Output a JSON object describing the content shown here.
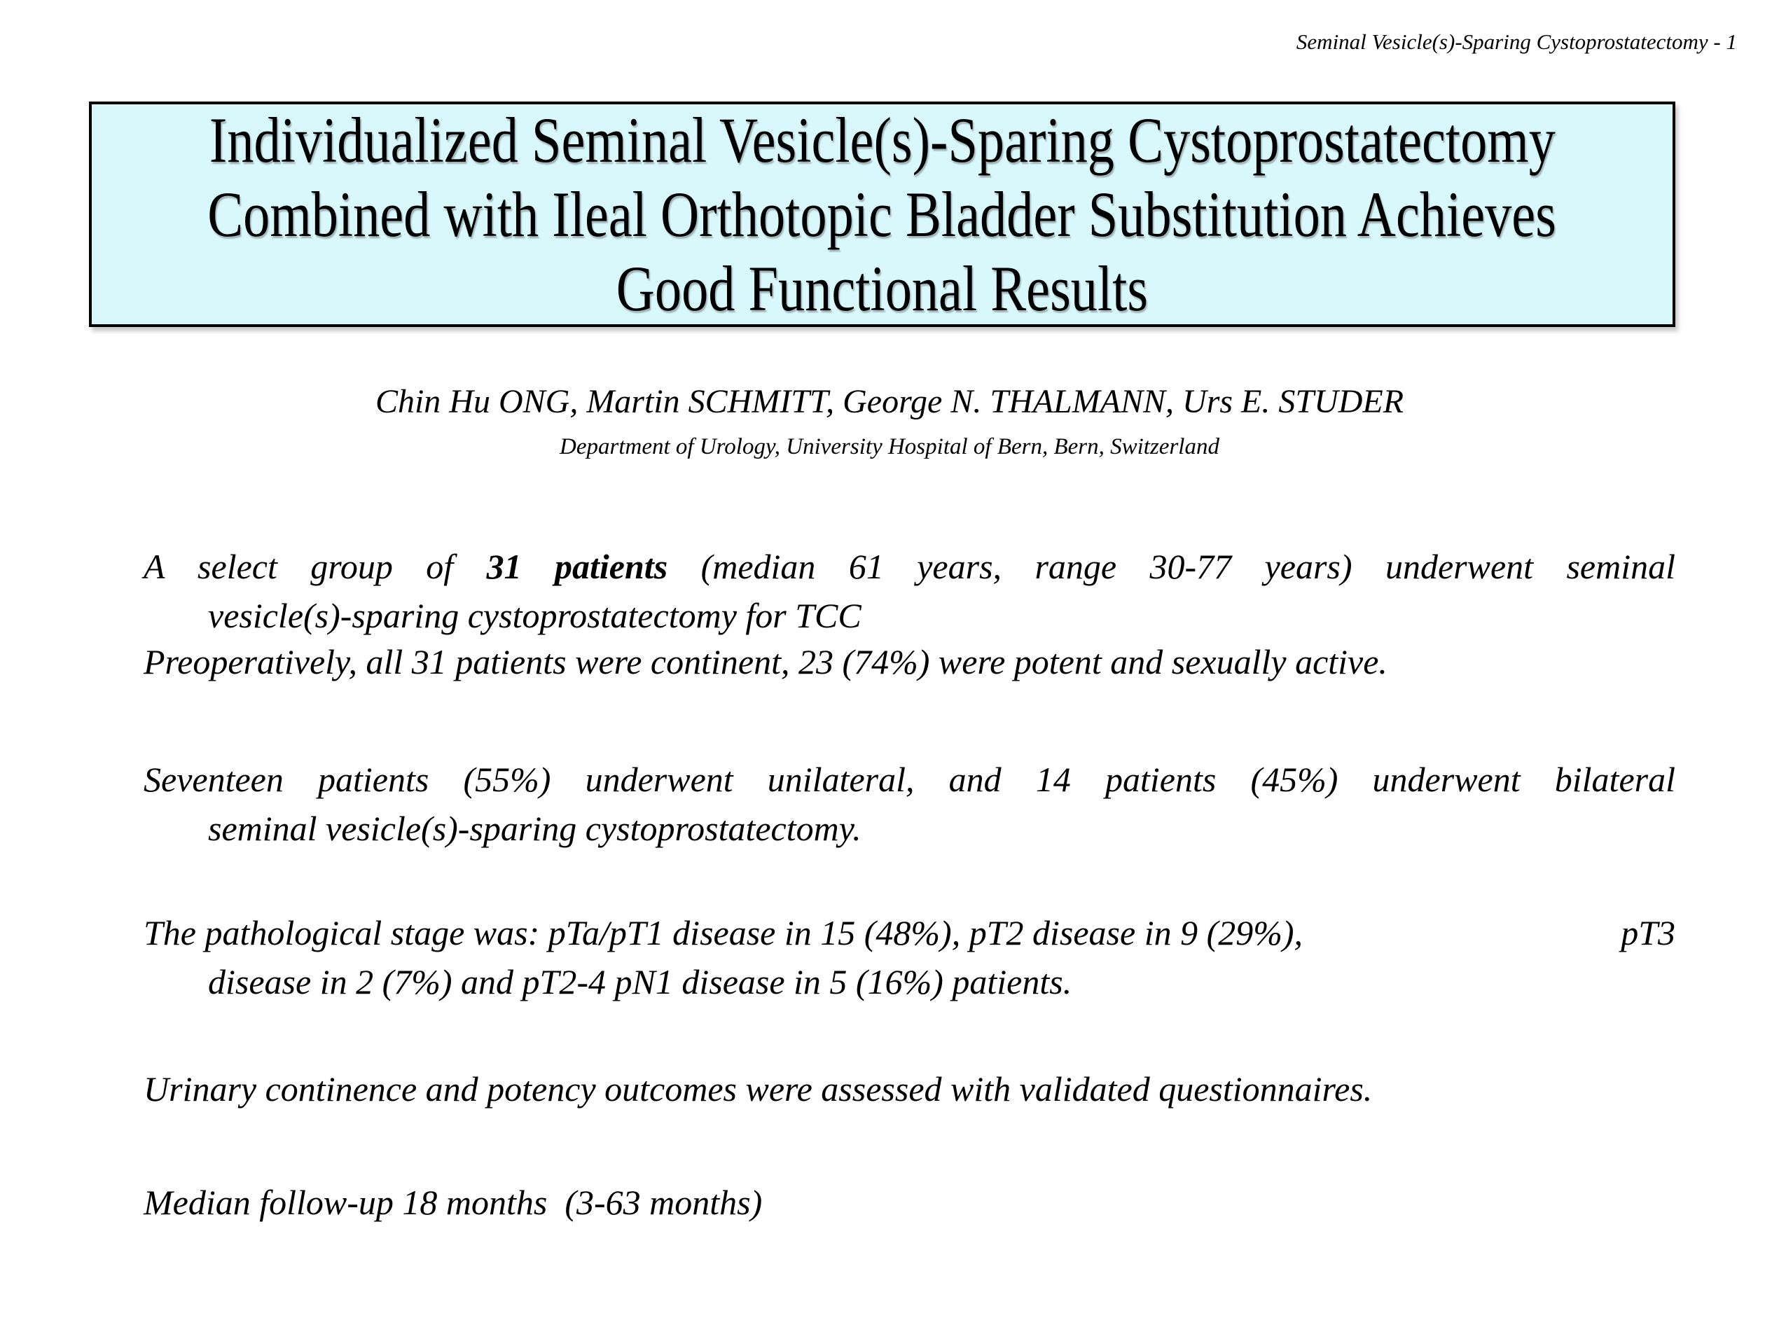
{
  "page": {
    "header_label": "Seminal Vesicle(s)-Sparing Cystoprostatectomy - 1"
  },
  "title_box": {
    "bg_color": "#d9f8fc",
    "border_color": "#000000",
    "lines": [
      "Individualized Seminal Vesicle(s)-Sparing Cystoprostatectomy",
      "Combined with Ileal Orthotopic Bladder Substitution Achieves",
      "Good Functional Results"
    ]
  },
  "byline": {
    "authors": "Chin Hu ONG, Martin SCHMITT, George N. THALMANN, Urs E. STUDER",
    "affiliation": "Department of Urology, University Hospital of Bern, Bern, Switzerland"
  },
  "abstract": {
    "p1": {
      "segment_pre": "A select group of ",
      "segment_bold": "31 patients",
      "segment_post": " (median 61 years, range 30-77 years) underwent seminal",
      "line2": "vesicle(s)-sparing cystoprostatectomy for TCC"
    },
    "p2": "Preoperatively, all 31 patients were continent, 23 (74%) were potent and sexually active.",
    "p3": {
      "line1": "Seventeen patients (55%) underwent unilateral, and 14 patients (45%) underwent bilateral",
      "line2": "seminal vesicle(s)-sparing cystoprostatectomy."
    },
    "p4": {
      "line1_left": "The pathological stage was: pTa/pT1 disease in 15 (48%), pT2 disease in 9 (29%),",
      "line1_right": "pT3",
      "line2": "disease in 2 (7%) and pT2-4 pN1 disease in 5 (16%) patients."
    },
    "p5": "Urinary continence and potency outcomes were assessed with validated questionnaires.",
    "p6": "Median follow-up 18 months  (3-63 months)"
  }
}
